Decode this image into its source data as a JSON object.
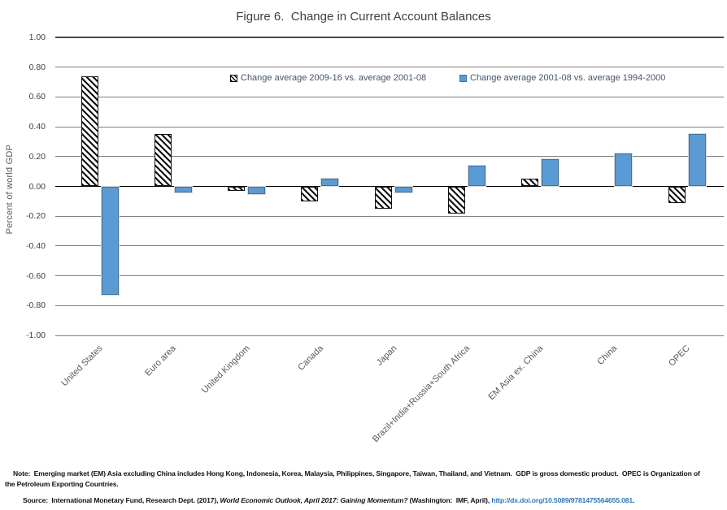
{
  "page": {
    "note": "Note:  Emerging market (EM) Asia excluding China includes Hong Kong, Indonesia, Korea, Malaysia, Philippines, Singapore, Taiwan, Thailand, and Vietnam.  GDP is gross domestic product.  OPEC is Organization of the Petroleum Exporting Countries.",
    "source_prefix": "Source:  International Monetary Fund, Research Dept. (2017), ",
    "source_italic": "World Economic Outlook, April 2017: Gaining Momentum?",
    "source_middle": " (Washington:  IMF, April), ",
    "source_link": "http://dx.doi.org/10.5089/9781475564655.081",
    "source_suffix": ".",
    "link_color": "#2E75B6"
  },
  "chart_data": {
    "type": "bar",
    "title": "Figure 6.  Change in Current Account Balances",
    "ylabel": "Percent of world GDP",
    "xlabel": "",
    "ylim": [
      -1.0,
      1.0
    ],
    "ytick_step": 0.2,
    "y_ticks": [
      "1.00",
      "0.80",
      "0.60",
      "0.40",
      "0.20",
      "0.00",
      "-0.20",
      "-0.40",
      "-0.60",
      "-0.80",
      "-1.00"
    ],
    "grid": true,
    "legend_position": "top-inside",
    "categories": [
      "United States",
      "Euro area",
      "United Kingdom",
      "Canada",
      "Japan",
      "Brazil+India+Russia+South Africa",
      "EM Asia ex. China",
      "China",
      "OPEC"
    ],
    "series": [
      {
        "name": "Change average 2009-16 vs. average 2001-08",
        "style": "hatched",
        "fill": "#ffffff",
        "pattern_color": "#111111",
        "values": [
          0.74,
          0.35,
          -0.03,
          -0.1,
          -0.15,
          -0.18,
          0.05,
          0.0,
          -0.11
        ]
      },
      {
        "name": "Change average 2001-08 vs. average 1994-2000",
        "style": "solid",
        "fill": "#5B9BD5",
        "border": "#41719C",
        "values": [
          -0.73,
          -0.04,
          -0.05,
          0.05,
          -0.04,
          0.14,
          0.18,
          0.22,
          0.35
        ]
      }
    ]
  }
}
